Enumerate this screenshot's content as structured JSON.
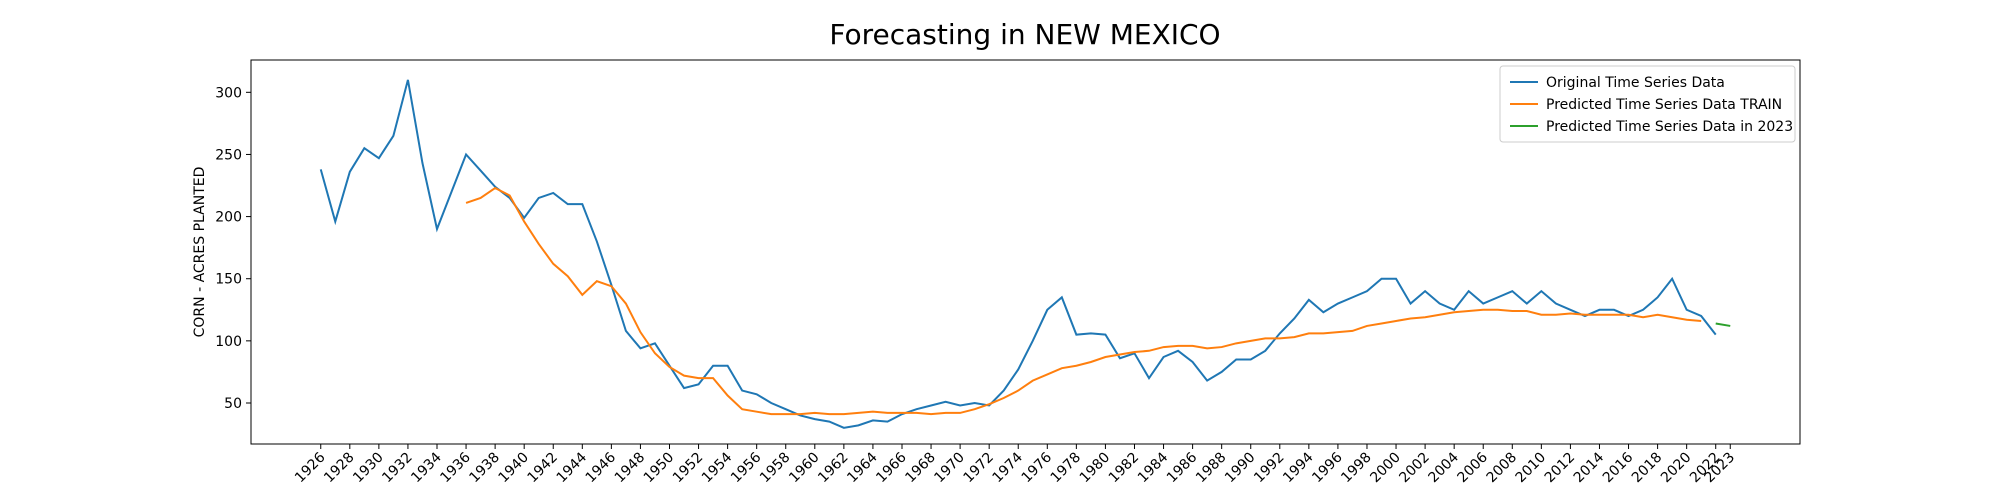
{
  "chart_data": {
    "type": "line",
    "title": "Forecasting in NEW MEXICO",
    "ylabel": "CORN - ACRES PLANTED",
    "xlim": [
      1921.2,
      2027.8
    ],
    "ylim": [
      17,
      326
    ],
    "xticks": [
      1926,
      1928,
      1930,
      1932,
      1934,
      1936,
      1938,
      1940,
      1942,
      1944,
      1946,
      1948,
      1950,
      1952,
      1954,
      1956,
      1958,
      1960,
      1962,
      1964,
      1966,
      1968,
      1970,
      1972,
      1974,
      1976,
      1978,
      1980,
      1982,
      1984,
      1986,
      1988,
      1990,
      1992,
      1994,
      1996,
      1998,
      2000,
      2002,
      2004,
      2006,
      2008,
      2010,
      2012,
      2014,
      2016,
      2018,
      2020,
      2022,
      2023
    ],
    "yticks": [
      50,
      100,
      150,
      200,
      250,
      300
    ],
    "legend": "upper right",
    "grid": false,
    "series": [
      {
        "name": "Original Time Series Data",
        "color": "#1f77b4",
        "x": [
          1926,
          1927,
          1928,
          1929,
          1930,
          1931,
          1932,
          1933,
          1934,
          1935,
          1936,
          1937,
          1938,
          1939,
          1940,
          1941,
          1942,
          1943,
          1944,
          1945,
          1946,
          1947,
          1948,
          1949,
          1950,
          1951,
          1952,
          1953,
          1954,
          1955,
          1956,
          1957,
          1958,
          1959,
          1960,
          1961,
          1962,
          1963,
          1964,
          1965,
          1966,
          1967,
          1968,
          1969,
          1970,
          1971,
          1972,
          1973,
          1974,
          1975,
          1976,
          1977,
          1978,
          1979,
          1980,
          1981,
          1982,
          1983,
          1984,
          1985,
          1986,
          1987,
          1988,
          1989,
          1990,
          1991,
          1992,
          1993,
          1994,
          1995,
          1996,
          1997,
          1998,
          1999,
          2000,
          2001,
          2002,
          2003,
          2004,
          2005,
          2006,
          2007,
          2008,
          2009,
          2010,
          2011,
          2012,
          2013,
          2014,
          2015,
          2016,
          2017,
          2018,
          2019,
          2020,
          2021,
          2022
        ],
        "values": [
          238,
          196,
          236,
          255,
          247,
          265,
          310,
          243,
          190,
          220,
          250,
          237,
          224,
          215,
          199,
          215,
          219,
          210,
          210,
          180,
          145,
          108,
          94,
          98,
          80,
          62,
          65,
          80,
          80,
          60,
          57,
          50,
          45,
          40,
          37,
          35,
          30,
          32,
          36,
          35,
          41,
          45,
          48,
          51,
          48,
          50,
          48,
          60,
          77,
          100,
          125,
          135,
          105,
          106,
          105,
          86,
          90,
          70,
          87,
          92,
          83,
          68,
          75,
          85,
          85,
          92,
          106,
          118,
          133,
          123,
          130,
          135,
          140,
          150,
          150,
          130,
          140,
          130,
          125,
          140,
          130,
          135,
          140,
          130,
          140,
          130,
          125,
          120,
          125,
          125,
          120,
          125,
          135,
          150,
          125,
          120,
          105
        ]
      },
      {
        "name": "Predicted Time Series Data TRAIN",
        "color": "#ff7f0e",
        "x": [
          1936,
          1937,
          1938,
          1939,
          1940,
          1941,
          1942,
          1943,
          1944,
          1945,
          1946,
          1947,
          1948,
          1949,
          1950,
          1951,
          1952,
          1953,
          1954,
          1955,
          1956,
          1957,
          1958,
          1959,
          1960,
          1961,
          1962,
          1963,
          1964,
          1965,
          1966,
          1967,
          1968,
          1969,
          1970,
          1971,
          1972,
          1973,
          1974,
          1975,
          1976,
          1977,
          1978,
          1979,
          1980,
          1981,
          1982,
          1983,
          1984,
          1985,
          1986,
          1987,
          1988,
          1989,
          1990,
          1991,
          1992,
          1993,
          1994,
          1995,
          1996,
          1997,
          1998,
          1999,
          2000,
          2001,
          2002,
          2003,
          2004,
          2005,
          2006,
          2007,
          2008,
          2009,
          2010,
          2011,
          2012,
          2013,
          2014,
          2015,
          2016,
          2017,
          2018,
          2019,
          2020,
          2021
        ],
        "values": [
          211,
          215,
          223,
          217,
          196,
          178,
          162,
          152,
          137,
          148,
          144,
          130,
          107,
          90,
          79,
          72,
          70,
          70,
          56,
          45,
          43,
          41,
          41,
          41,
          42,
          41,
          41,
          42,
          43,
          42,
          42,
          42,
          41,
          42,
          42,
          45,
          49,
          54,
          60,
          68,
          73,
          78,
          80,
          83,
          87,
          89,
          91,
          92,
          95,
          96,
          96,
          94,
          95,
          98,
          100,
          102,
          102,
          103,
          106,
          106,
          107,
          108,
          112,
          114,
          116,
          118,
          119,
          121,
          123,
          124,
          125,
          125,
          124,
          124,
          121,
          121,
          122,
          121,
          121,
          121,
          121,
          119,
          121,
          119,
          117,
          116
        ]
      },
      {
        "name": "Predicted Time Series Data in 2023",
        "color": "#2ca02c",
        "x": [
          2022,
          2023
        ],
        "values": [
          114,
          112
        ]
      }
    ]
  }
}
